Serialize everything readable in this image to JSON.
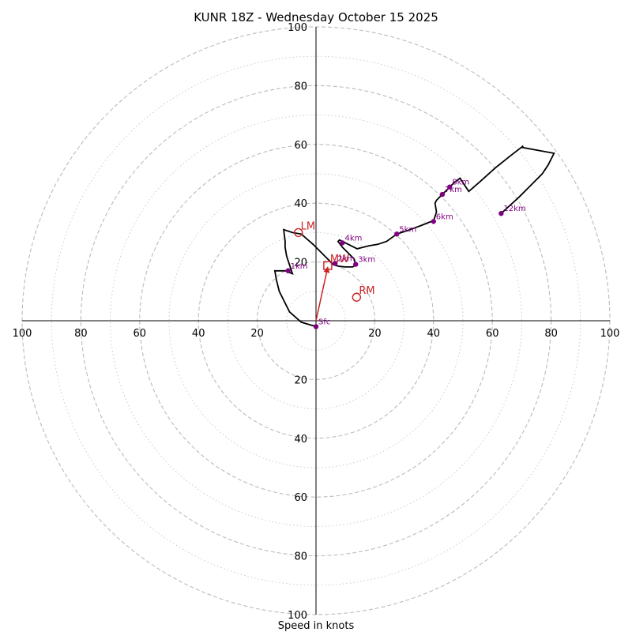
{
  "chart_data": {
    "type": "hodograph",
    "title": "KUNR 18Z - Wednesday October 15 2025",
    "xlabel": "Speed in knots",
    "units": "knots",
    "max_speed": 100,
    "major_rings": [
      20,
      40,
      60,
      80,
      100
    ],
    "minor_rings": [
      10,
      30,
      50,
      70,
      90
    ],
    "tick_labels": [
      "20",
      "40",
      "60",
      "80",
      "100"
    ],
    "colors": {
      "trace": "#000000",
      "height_marker": "#800080",
      "storm_motion": "#cc2222",
      "ring_major": "#bbbbbb",
      "ring_minor": "#cccccc"
    },
    "trace": [
      [
        0,
        -2
      ],
      [
        -5,
        -0.5
      ],
      [
        -9,
        3
      ],
      [
        -11,
        7
      ],
      [
        -12.5,
        10
      ],
      [
        -13.5,
        14
      ],
      [
        -14,
        17
      ],
      [
        -10.5,
        17
      ],
      [
        -8,
        16
      ],
      [
        -9,
        19
      ],
      [
        -10,
        22
      ],
      [
        -10.5,
        25
      ],
      [
        -10.5,
        27
      ],
      [
        -11,
        31
      ],
      [
        -8,
        30
      ],
      [
        -5,
        29.5
      ],
      [
        -1,
        26
      ],
      [
        3,
        22
      ],
      [
        6,
        19
      ],
      [
        8,
        18.5
      ],
      [
        10,
        18.3
      ],
      [
        12.5,
        18.3
      ],
      [
        13.5,
        19
      ],
      [
        13,
        21
      ],
      [
        11,
        23
      ],
      [
        9,
        25
      ],
      [
        7.5,
        27
      ],
      [
        8,
        27.5
      ],
      [
        11,
        26
      ],
      [
        14,
        24.5
      ],
      [
        16,
        25
      ],
      [
        18,
        25.5
      ],
      [
        21,
        26
      ],
      [
        24,
        27
      ],
      [
        27.5,
        29.5
      ],
      [
        32,
        31
      ],
      [
        36,
        32.5
      ],
      [
        38.5,
        33.5
      ],
      [
        40,
        34
      ],
      [
        41,
        37
      ],
      [
        40.5,
        40
      ],
      [
        41,
        41
      ],
      [
        43,
        43
      ],
      [
        45.5,
        45.5
      ],
      [
        47,
        47
      ],
      [
        49,
        48.5
      ],
      [
        50,
        47
      ],
      [
        52,
        44
      ],
      [
        56,
        47.5
      ],
      [
        61,
        52
      ],
      [
        66,
        56
      ],
      [
        70.5,
        59.5
      ],
      [
        70,
        59
      ],
      [
        81,
        57
      ],
      [
        79,
        53
      ],
      [
        77,
        50
      ],
      [
        73,
        46
      ],
      [
        69,
        42
      ],
      [
        63,
        36.5
      ]
    ],
    "height_markers": [
      {
        "label": "Sfc",
        "u": 0,
        "v": -2
      },
      {
        "label": "1km",
        "u": -9.5,
        "v": 17
      },
      {
        "label": "2km",
        "u": 6.5,
        "v": 19.5
      },
      {
        "label": "3km",
        "u": 13.5,
        "v": 19.2
      },
      {
        "label": "4km",
        "u": 9,
        "v": 26.5
      },
      {
        "label": "5km",
        "u": 27.5,
        "v": 29.5
      },
      {
        "label": "6km",
        "u": 40,
        "v": 33.8
      },
      {
        "label": "7km",
        "u": 43,
        "v": 43
      },
      {
        "label": "8km",
        "u": 45.5,
        "v": 45.5
      },
      {
        "label": "12km",
        "u": 63,
        "v": 36.5
      }
    ],
    "storm_motion": {
      "LM": {
        "label": "LM",
        "u": -6,
        "v": 30
      },
      "RM": {
        "label": "RM",
        "u": 13.8,
        "v": 8
      },
      "MW": {
        "label": "MW",
        "u": 4,
        "v": 18.8
      },
      "vector": {
        "u": 4,
        "v": 18.8
      }
    }
  }
}
